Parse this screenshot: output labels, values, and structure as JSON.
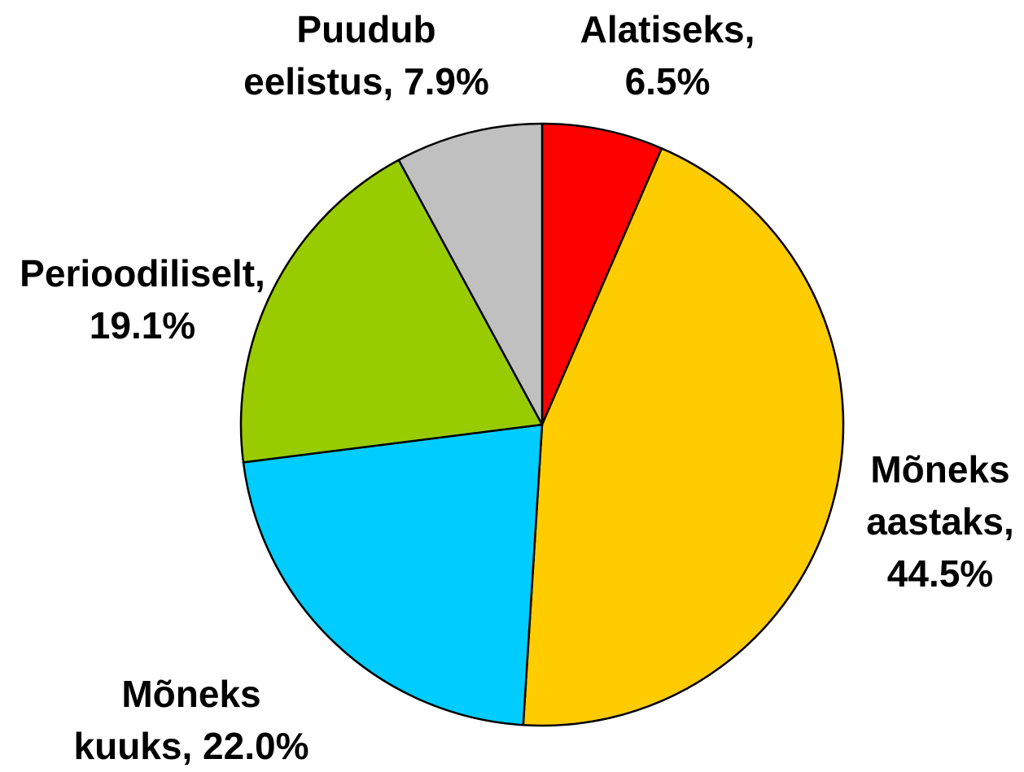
{
  "chart_data": {
    "type": "pie",
    "values": [
      6.5,
      44.5,
      22.0,
      19.1,
      7.9
    ],
    "value_labels": [
      "Alatiseks,\n6.5%",
      "Mõneks\naastaks,\n44.5%",
      "Mõneks\nkuuks, 22.0%",
      "Perioodiliselt,\n19.1%",
      "Puudub\neelistus, 7.9%"
    ],
    "colors": [
      "#ff0000",
      "#ffcc00",
      "#00ccff",
      "#99cc00",
      "#c0c0c0"
    ]
  }
}
